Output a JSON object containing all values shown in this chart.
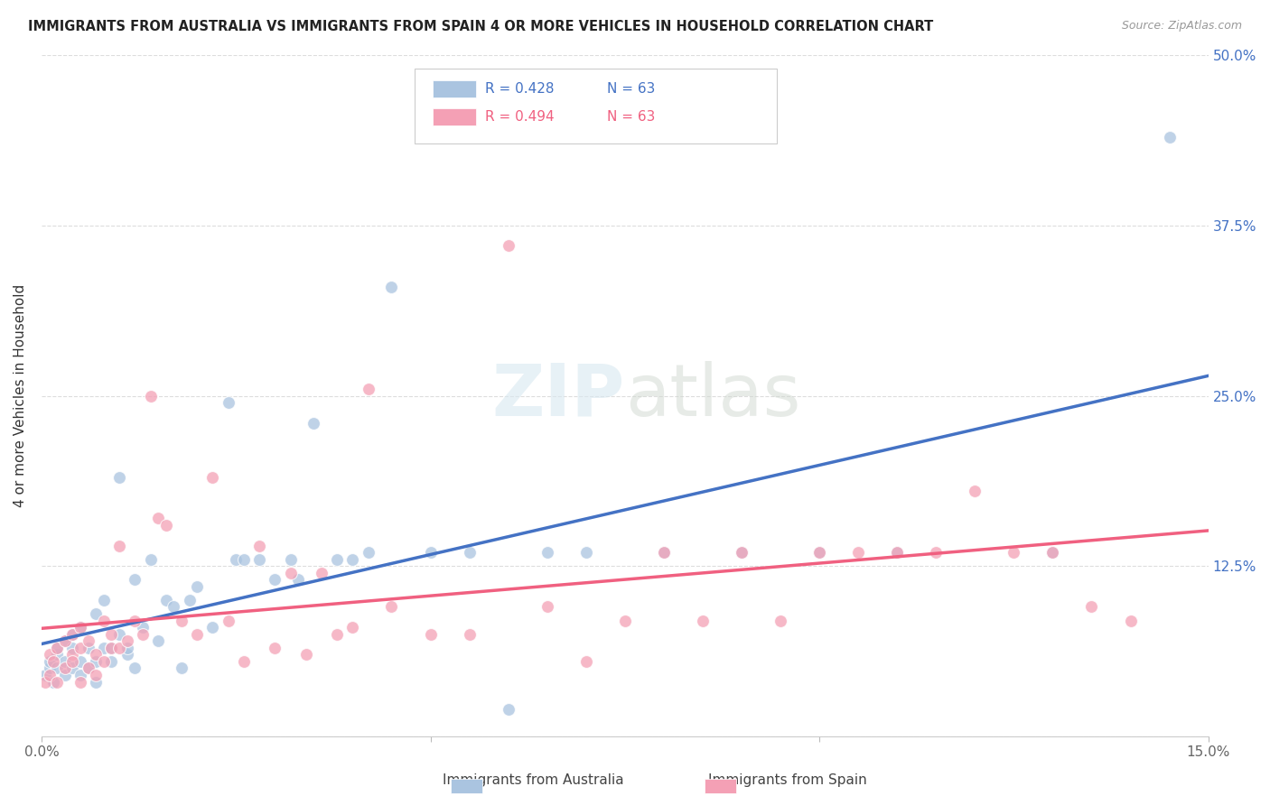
{
  "title": "IMMIGRANTS FROM AUSTRALIA VS IMMIGRANTS FROM SPAIN 4 OR MORE VEHICLES IN HOUSEHOLD CORRELATION CHART",
  "source": "Source: ZipAtlas.com",
  "ylabel": "4 or more Vehicles in Household",
  "xlim": [
    0.0,
    0.15
  ],
  "ylim": [
    0.0,
    0.5
  ],
  "r_australia": 0.428,
  "n_australia": 63,
  "r_spain": 0.494,
  "n_spain": 63,
  "color_australia": "#aac4e0",
  "color_spain": "#f4a0b5",
  "line_color_australia": "#4472c4",
  "line_color_spain": "#f06080",
  "background_color": "#ffffff",
  "grid_color": "#dddddd",
  "australia_x": [
    0.0005,
    0.001,
    0.001,
    0.0015,
    0.002,
    0.002,
    0.002,
    0.003,
    0.003,
    0.003,
    0.004,
    0.004,
    0.004,
    0.005,
    0.005,
    0.005,
    0.006,
    0.006,
    0.007,
    0.007,
    0.007,
    0.008,
    0.008,
    0.009,
    0.009,
    0.01,
    0.01,
    0.011,
    0.011,
    0.012,
    0.012,
    0.013,
    0.014,
    0.015,
    0.016,
    0.017,
    0.018,
    0.019,
    0.02,
    0.022,
    0.024,
    0.025,
    0.026,
    0.028,
    0.03,
    0.032,
    0.033,
    0.035,
    0.038,
    0.04,
    0.042,
    0.045,
    0.05,
    0.055,
    0.06,
    0.065,
    0.07,
    0.08,
    0.09,
    0.1,
    0.11,
    0.13,
    0.145
  ],
  "australia_y": [
    0.045,
    0.05,
    0.055,
    0.04,
    0.06,
    0.05,
    0.065,
    0.055,
    0.07,
    0.045,
    0.05,
    0.065,
    0.075,
    0.045,
    0.055,
    0.08,
    0.05,
    0.065,
    0.04,
    0.055,
    0.09,
    0.065,
    0.1,
    0.055,
    0.065,
    0.075,
    0.19,
    0.06,
    0.065,
    0.05,
    0.115,
    0.08,
    0.13,
    0.07,
    0.1,
    0.095,
    0.05,
    0.1,
    0.11,
    0.08,
    0.245,
    0.13,
    0.13,
    0.13,
    0.115,
    0.13,
    0.115,
    0.23,
    0.13,
    0.13,
    0.135,
    0.33,
    0.135,
    0.135,
    0.02,
    0.135,
    0.135,
    0.135,
    0.135,
    0.135,
    0.135,
    0.135,
    0.44
  ],
  "spain_x": [
    0.0005,
    0.001,
    0.001,
    0.0015,
    0.002,
    0.002,
    0.003,
    0.003,
    0.004,
    0.004,
    0.004,
    0.005,
    0.005,
    0.005,
    0.006,
    0.006,
    0.007,
    0.007,
    0.008,
    0.008,
    0.009,
    0.009,
    0.01,
    0.01,
    0.011,
    0.012,
    0.013,
    0.014,
    0.015,
    0.016,
    0.018,
    0.02,
    0.022,
    0.024,
    0.026,
    0.028,
    0.03,
    0.032,
    0.034,
    0.036,
    0.038,
    0.04,
    0.042,
    0.045,
    0.05,
    0.055,
    0.06,
    0.065,
    0.07,
    0.075,
    0.08,
    0.085,
    0.09,
    0.095,
    0.1,
    0.105,
    0.11,
    0.115,
    0.12,
    0.125,
    0.13,
    0.135,
    0.14
  ],
  "spain_y": [
    0.04,
    0.045,
    0.06,
    0.055,
    0.04,
    0.065,
    0.05,
    0.07,
    0.06,
    0.055,
    0.075,
    0.04,
    0.065,
    0.08,
    0.05,
    0.07,
    0.045,
    0.06,
    0.055,
    0.085,
    0.065,
    0.075,
    0.065,
    0.14,
    0.07,
    0.085,
    0.075,
    0.25,
    0.16,
    0.155,
    0.085,
    0.075,
    0.19,
    0.085,
    0.055,
    0.14,
    0.065,
    0.12,
    0.06,
    0.12,
    0.075,
    0.08,
    0.255,
    0.095,
    0.075,
    0.075,
    0.36,
    0.095,
    0.055,
    0.085,
    0.135,
    0.085,
    0.135,
    0.085,
    0.135,
    0.135,
    0.135,
    0.135,
    0.18,
    0.135,
    0.135,
    0.095,
    0.085
  ]
}
